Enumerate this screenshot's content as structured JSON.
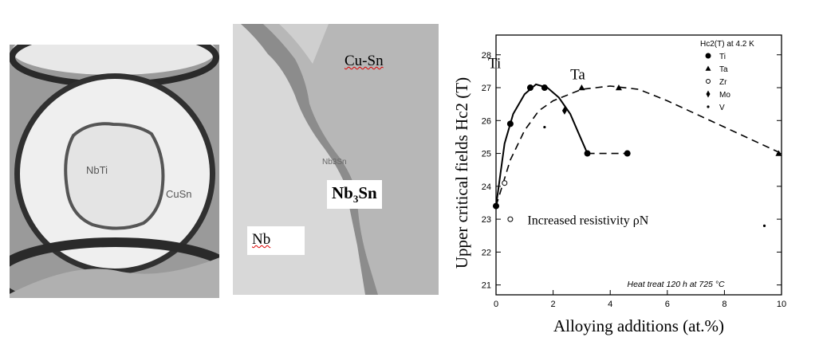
{
  "left_image": {
    "inner_label": "NbTi",
    "outer_label": "CuSn"
  },
  "middle_image": {
    "cu_sn_label": "Cu-Sn",
    "nb3sn_label": "Nb3Sn",
    "nb_label": "Nb",
    "faint_label": "Nb3Sn"
  },
  "chart_data": {
    "type": "scatter",
    "ylabel": "Upper critical fields Hc2 (T)",
    "xlabel": "Alloying additions (at.%)",
    "xlim": [
      0,
      10
    ],
    "ylim": [
      20.7,
      28.6
    ],
    "x_ticks": [
      0,
      2,
      4,
      6,
      8,
      10
    ],
    "y_ticks": [
      21,
      22,
      23,
      24,
      25,
      26,
      27,
      28
    ],
    "legend_title": "Hc2(T) at 4.2 K",
    "legend_position": "top-right",
    "legend": [
      {
        "name": "Ti",
        "marker": "filled-circle"
      },
      {
        "name": "Ta",
        "marker": "filled-triangle"
      },
      {
        "name": "Zr",
        "marker": "open-circle"
      },
      {
        "name": "Mo",
        "marker": "filled-diamond"
      },
      {
        "name": "V",
        "marker": "small-dot"
      }
    ],
    "series": [
      {
        "name": "Ti",
        "marker": "filled-circle",
        "points": [
          [
            0,
            23.4
          ],
          [
            0.5,
            25.9
          ],
          [
            1.2,
            27.0
          ],
          [
            1.7,
            27.0
          ],
          [
            3.2,
            25.0
          ],
          [
            4.6,
            25.0
          ]
        ]
      },
      {
        "name": "Ta",
        "marker": "filled-triangle",
        "points": [
          [
            3.0,
            27.0
          ],
          [
            4.3,
            27.0
          ],
          [
            9.9,
            25.0
          ]
        ]
      },
      {
        "name": "Zr",
        "marker": "open-circle",
        "points": [
          [
            0.3,
            24.1
          ],
          [
            0.5,
            23.0
          ]
        ]
      },
      {
        "name": "Mo",
        "marker": "filled-diamond",
        "points": [
          [
            2.4,
            26.3
          ]
        ]
      },
      {
        "name": "V",
        "marker": "small-dot",
        "points": [
          [
            1.7,
            25.8
          ],
          [
            9.4,
            22.8
          ]
        ]
      }
    ],
    "curves": [
      {
        "name": "Ti",
        "style": "solid",
        "points": [
          [
            0,
            23.4
          ],
          [
            0.3,
            25.3
          ],
          [
            0.6,
            26.2
          ],
          [
            1.0,
            26.8
          ],
          [
            1.4,
            27.1
          ],
          [
            1.8,
            27.0
          ],
          [
            2.2,
            26.7
          ],
          [
            2.6,
            26.2
          ],
          [
            2.9,
            25.6
          ],
          [
            3.2,
            25.0
          ]
        ]
      },
      {
        "name": "Ti-extension",
        "style": "dashed",
        "points": [
          [
            3.2,
            25.0
          ],
          [
            4.6,
            25.0
          ]
        ]
      },
      {
        "name": "Ta",
        "style": "dashed",
        "points": [
          [
            0,
            23.4
          ],
          [
            0.5,
            24.8
          ],
          [
            1.0,
            25.7
          ],
          [
            1.5,
            26.3
          ],
          [
            2.0,
            26.6
          ],
          [
            3.0,
            26.95
          ],
          [
            4.0,
            27.05
          ],
          [
            5.0,
            26.95
          ],
          [
            6.0,
            26.6
          ],
          [
            7.0,
            26.2
          ],
          [
            8.0,
            25.8
          ],
          [
            9.0,
            25.4
          ],
          [
            10.0,
            25.0
          ]
        ]
      }
    ],
    "annotations": {
      "ti_label": "Ti",
      "ta_label": "Ta",
      "resistivity": "Increased resistivity ρN",
      "heat_treat": "Heat treat 120 h at 725 °C"
    },
    "colors": {
      "axes": "#000000",
      "background": "#ffffff"
    }
  }
}
